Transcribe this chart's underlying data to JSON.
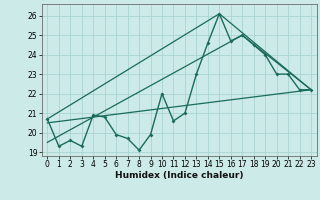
{
  "xlabel": "Humidex (Indice chaleur)",
  "background_color": "#cceae7",
  "grid_color": "#aad4d0",
  "line_color": "#1a6b5a",
  "ylim": [
    18.8,
    26.6
  ],
  "xlim": [
    -0.5,
    23.5
  ],
  "yticks": [
    19,
    20,
    21,
    22,
    23,
    24,
    25,
    26
  ],
  "xticks": [
    0,
    1,
    2,
    3,
    4,
    5,
    6,
    7,
    8,
    9,
    10,
    11,
    12,
    13,
    14,
    15,
    16,
    17,
    18,
    19,
    20,
    21,
    22,
    23
  ],
  "series1_x": [
    0,
    1,
    2,
    3,
    4,
    5,
    6,
    7,
    8,
    9,
    10,
    11,
    12,
    13,
    14,
    15,
    16,
    17,
    18,
    19,
    20,
    21,
    22,
    23
  ],
  "series1_y": [
    20.7,
    19.3,
    19.6,
    19.3,
    20.9,
    20.8,
    19.9,
    19.7,
    19.1,
    19.9,
    22.0,
    20.6,
    21.0,
    23.0,
    24.6,
    26.1,
    24.7,
    25.0,
    24.5,
    24.0,
    23.0,
    23.0,
    22.2,
    22.2
  ],
  "series2_x": [
    0,
    23
  ],
  "series2_y": [
    20.5,
    22.2
  ],
  "series3_x": [
    0,
    15,
    23
  ],
  "series3_y": [
    20.7,
    26.1,
    22.2
  ],
  "series4_x": [
    0,
    17,
    23
  ],
  "series4_y": [
    19.5,
    25.0,
    22.2
  ]
}
